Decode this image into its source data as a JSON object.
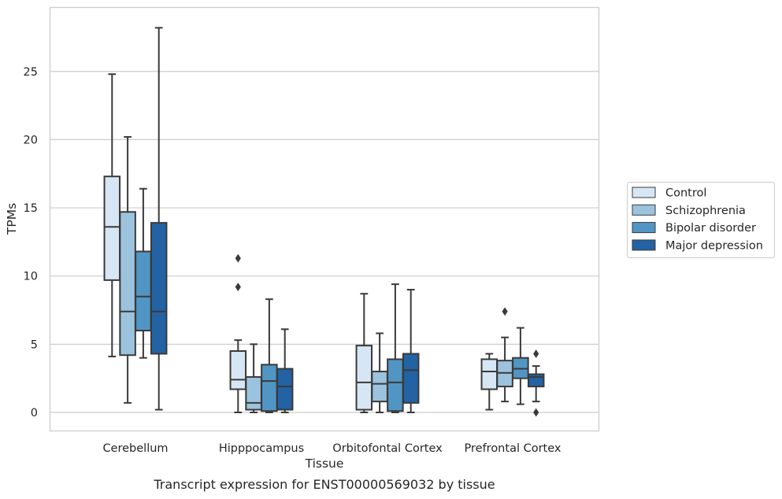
{
  "chart_data": {
    "type": "box",
    "title": "",
    "caption": "Transcript expression for ENST00000569032 by tissue",
    "xlabel": "Tissue",
    "ylabel": "TPMs",
    "ylim": [
      -1.3,
      29.7
    ],
    "yticks": [
      0,
      5,
      10,
      15,
      20,
      25
    ],
    "grid": "horizontal",
    "legend_placement": "right",
    "categories": [
      "Cerebellum",
      "Hipppocampus",
      "Orbitofontal Cortex",
      "Prefrontal Cortex"
    ],
    "series": [
      {
        "name": "Control",
        "color": "#d7e6f4",
        "boxes": [
          {
            "whisker_low": 4.1,
            "q1": 9.7,
            "median": 13.6,
            "q3": 17.3,
            "whisker_high": 24.8,
            "outliers": []
          },
          {
            "whisker_low": 0.0,
            "q1": 1.7,
            "median": 2.4,
            "q3": 4.5,
            "whisker_high": 5.3,
            "outliers": [
              11.3,
              9.2
            ]
          },
          {
            "whisker_low": 0.0,
            "q1": 0.2,
            "median": 2.2,
            "q3": 4.9,
            "whisker_high": 8.7,
            "outliers": []
          },
          {
            "whisker_low": 0.2,
            "q1": 1.7,
            "median": 3.0,
            "q3": 3.9,
            "whisker_high": 4.3,
            "outliers": []
          }
        ]
      },
      {
        "name": "Schizophrenia",
        "color": "#9cc3de",
        "boxes": [
          {
            "whisker_low": 0.7,
            "q1": 4.2,
            "median": 7.4,
            "q3": 14.7,
            "whisker_high": 20.2,
            "outliers": []
          },
          {
            "whisker_low": 0.0,
            "q1": 0.2,
            "median": 0.7,
            "q3": 2.6,
            "whisker_high": 5.0,
            "outliers": []
          },
          {
            "whisker_low": 0.0,
            "q1": 0.8,
            "median": 2.1,
            "q3": 3.0,
            "whisker_high": 5.8,
            "outliers": []
          },
          {
            "whisker_low": 0.8,
            "q1": 1.9,
            "median": 2.9,
            "q3": 3.8,
            "whisker_high": 5.5,
            "outliers": [
              7.4
            ]
          }
        ]
      },
      {
        "name": "Bipolar disorder",
        "color": "#5195c4",
        "boxes": [
          {
            "whisker_low": 4.0,
            "q1": 6.0,
            "median": 8.5,
            "q3": 11.8,
            "whisker_high": 16.4,
            "outliers": []
          },
          {
            "whisker_low": 0.0,
            "q1": 0.1,
            "median": 2.3,
            "q3": 3.5,
            "whisker_high": 8.3,
            "outliers": []
          },
          {
            "whisker_low": 0.0,
            "q1": 0.1,
            "median": 2.2,
            "q3": 3.9,
            "whisker_high": 9.4,
            "outliers": []
          },
          {
            "whisker_low": 0.6,
            "q1": 2.5,
            "median": 3.2,
            "q3": 4.0,
            "whisker_high": 6.2,
            "outliers": []
          }
        ]
      },
      {
        "name": "Major depression",
        "color": "#2362a3",
        "boxes": [
          {
            "whisker_low": 0.2,
            "q1": 4.3,
            "median": 7.4,
            "q3": 13.9,
            "whisker_high": 28.2,
            "outliers": []
          },
          {
            "whisker_low": 0.0,
            "q1": 0.2,
            "median": 1.9,
            "q3": 3.2,
            "whisker_high": 6.1,
            "outliers": []
          },
          {
            "whisker_low": 0.0,
            "q1": 0.7,
            "median": 3.1,
            "q3": 4.3,
            "whisker_high": 9.0,
            "outliers": []
          },
          {
            "whisker_low": 0.8,
            "q1": 1.9,
            "median": 2.6,
            "q3": 2.8,
            "whisker_high": 3.4,
            "outliers": [
              4.3,
              0.0
            ]
          }
        ]
      }
    ]
  }
}
